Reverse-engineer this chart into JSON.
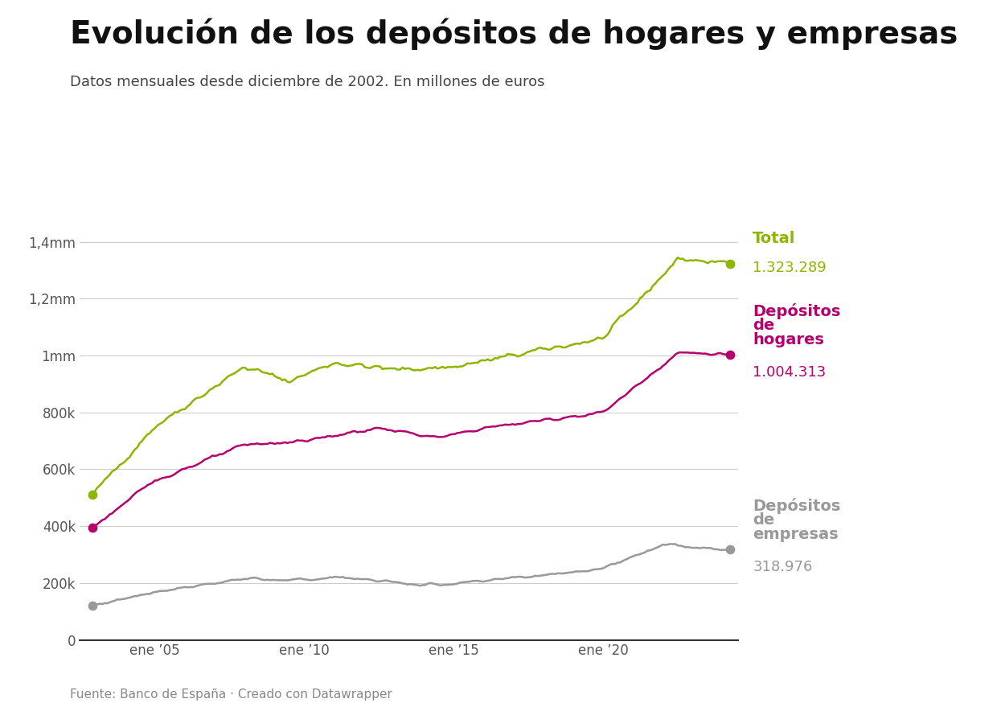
{
  "title": "Evolución de los depósitos de hogares y empresas",
  "subtitle": "Datos mensuales desde diciembre de 2002. En millones de euros",
  "footer": "Fuente: Banco de España · Creado con Datawrapper",
  "color_total": "#8db600",
  "color_hogares": "#b5006e",
  "color_empresas": "#999999",
  "value_total": "1.323.289",
  "value_hogares": "1.004.313",
  "value_empresas": "318.976",
  "yticks": [
    0,
    200000,
    400000,
    600000,
    800000,
    1000000,
    1200000,
    1400000
  ],
  "ytick_labels": [
    "0",
    "200k",
    "400k",
    "600k",
    "800k",
    "1mm",
    "1,2mm",
    "1,4mm"
  ],
  "xtick_years": [
    2005,
    2010,
    2015,
    2020
  ],
  "xtick_labels": [
    "ene ’05",
    "ene ’10",
    "ene ’15",
    "ene ’20"
  ],
  "background_color": "#ffffff",
  "grid_color": "#cccccc",
  "title_fontsize": 28,
  "subtitle_fontsize": 13,
  "footer_fontsize": 11,
  "axis_color": "#555555",
  "tick_label_fontsize": 12
}
